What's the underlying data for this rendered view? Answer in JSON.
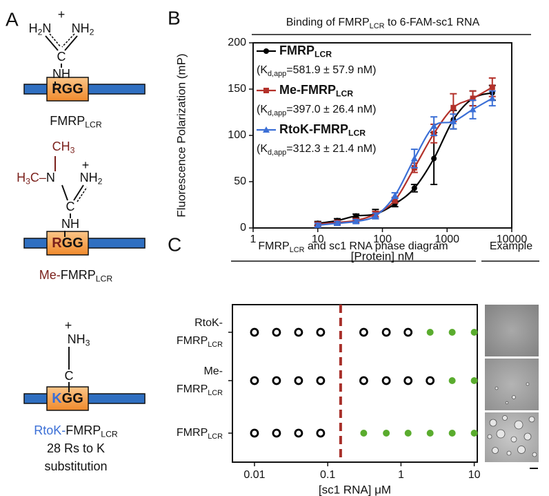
{
  "panel_a": {
    "label": "A",
    "structures": [
      {
        "atoms": [
          [
            {
              "t": "H"
            },
            {
              "s": "2"
            },
            {
              "t": "N"
            }
          ],
          [
            {
              "t": "NH"
            },
            {
              "s": "2"
            }
          ],
          [
            {
              "t": "+"
            }
          ],
          [
            {
              "t": "C"
            }
          ],
          [
            {
              "t": "NH"
            }
          ]
        ],
        "residue": [
          {
            "t": "R"
          },
          {
            "t": "GG"
          }
        ],
        "name": [
          [
            {
              "t": "FMRP"
            },
            {
              "s": "LCR"
            }
          ]
        ]
      },
      {
        "atoms": [
          [
            {
              "t": "CH",
              "color": "#7a1f1a"
            },
            {
              "s": "3",
              "color": "#7a1f1a"
            }
          ],
          [
            {
              "t": "H",
              "color": "#7a1f1a"
            },
            {
              "s": "3",
              "color": "#7a1f1a"
            },
            {
              "t": "C–",
              "color": "#7a1f1a"
            },
            {
              "t": "N"
            }
          ],
          [
            {
              "t": "NH"
            },
            {
              "s": "2"
            }
          ],
          [
            {
              "t": "+"
            }
          ],
          [
            {
              "t": "C"
            }
          ],
          [
            {
              "t": "NH"
            }
          ]
        ],
        "residue": [
          {
            "t": "R",
            "color": "#7a1f1a"
          },
          {
            "t": "GG"
          }
        ],
        "name": [
          [
            {
              "t": "Me-",
              "color": "#7a1f1a"
            },
            {
              "t": "FMRP"
            },
            {
              "s": "LCR"
            }
          ]
        ]
      },
      {
        "atoms": [
          [
            {
              "t": "+"
            }
          ],
          [
            {
              "t": "NH"
            },
            {
              "s": "3"
            }
          ],
          [
            {
              "t": "C"
            }
          ]
        ],
        "residue": [
          {
            "t": "K",
            "color": "#3b6fd6"
          },
          {
            "t": "GG"
          }
        ],
        "name": [
          [
            {
              "t": "RtoK-",
              "color": "#3b6fd6"
            },
            {
              "t": "FMRP"
            },
            {
              "s": "LCR"
            }
          ],
          [
            {
              "t": "28 Rs to K"
            }
          ],
          [
            {
              "t": "substitution"
            }
          ]
        ]
      }
    ]
  },
  "chart_data": [
    {
      "panel": "B",
      "type": "line",
      "title": [
        {
          "t": "Binding of FMRP"
        },
        {
          "s": "LCR"
        },
        {
          "t": " to 6-FAM-sc1 RNA"
        }
      ],
      "xlabel": "[Protein] nM",
      "ylabel": "Fluorescence Polarization (mP)",
      "xscale": "log",
      "xlim": [
        1,
        10000
      ],
      "xticks": [
        1,
        10,
        100,
        1000,
        10000
      ],
      "ylim": [
        0,
        200
      ],
      "yticks": [
        0,
        50,
        100,
        150,
        200
      ],
      "legend": "upper left",
      "x": [
        10,
        20,
        39,
        78,
        156,
        312,
        625,
        1250,
        2500,
        5000
      ],
      "series": [
        {
          "name": [
            {
              "t": "FMRP"
            },
            {
              "s": "LCR"
            }
          ],
          "annotation": [
            {
              "t": "(K"
            },
            {
              "s": "d,app"
            },
            {
              "t": "=581.9 ± 57.9 nM)"
            }
          ],
          "color": "#000000",
          "marker": "circle",
          "values": [
            5,
            8,
            13,
            15,
            26,
            43,
            75,
            117,
            140,
            146
          ],
          "errors": [
            2,
            2,
            2,
            5,
            3,
            4,
            28,
            10,
            8,
            8
          ]
        },
        {
          "name": [
            {
              "t": "Me-FMRP"
            },
            {
              "s": "LCR"
            }
          ],
          "annotation": [
            {
              "t": "(K"
            },
            {
              "s": "d,app"
            },
            {
              "t": "=397.0 ± 26.4 nM)"
            }
          ],
          "color": "#b3312a",
          "marker": "square",
          "values": [
            4,
            6,
            8,
            15,
            30,
            65,
            102,
            130,
            140,
            152
          ],
          "errors": [
            2,
            2,
            2,
            3,
            3,
            5,
            10,
            15,
            8,
            10
          ]
        },
        {
          "name": [
            {
              "t": "RtoK-FMRP"
            },
            {
              "s": "LCR"
            }
          ],
          "annotation": [
            {
              "t": "(K"
            },
            {
              "s": "d,app"
            },
            {
              "t": "=312.3 ± 21.4 nM)"
            }
          ],
          "color": "#3b6fd6",
          "marker": "triangle",
          "values": [
            3,
            5,
            7,
            13,
            35,
            75,
            110,
            115,
            128,
            140
          ],
          "errors": [
            2,
            2,
            2,
            3,
            3,
            10,
            10,
            8,
            10,
            8
          ]
        }
      ]
    },
    {
      "panel": "C",
      "type": "phase-diagram",
      "title": [
        {
          "t": "FMRP"
        },
        {
          "s": "LCR"
        },
        {
          "t": " and sc1 RNA phase diagram"
        }
      ],
      "side_title": "Example",
      "xlabel": "[sc1 RNA] μM",
      "xscale": "log",
      "xlim": [
        0.005,
        11
      ],
      "xticks": [
        0.01,
        0.1,
        1,
        10
      ],
      "x": [
        0.01,
        0.02,
        0.04,
        0.08,
        0.31,
        0.63,
        1.25,
        2.5,
        5,
        10
      ],
      "boundary": 0.15,
      "boundary_color": "#a8302a",
      "colors": {
        "open": "#000000",
        "filled": "#5aac2e"
      },
      "series": [
        {
          "name": [
            [
              {
                "t": "RtoK-"
              }
            ],
            [
              {
                "t": "FMRP"
              },
              {
                "s": "LCR"
              }
            ]
          ],
          "phase": [
            0,
            0,
            0,
            0,
            0,
            0,
            0,
            1,
            1,
            1
          ]
        },
        {
          "name": [
            [
              {
                "t": "Me-"
              }
            ],
            [
              {
                "t": "FMRP"
              },
              {
                "s": "LCR"
              }
            ]
          ],
          "phase": [
            0,
            0,
            0,
            0,
            0,
            0,
            0,
            0,
            1,
            1
          ]
        },
        {
          "name": [
            [
              {
                "t": "FMRP"
              },
              {
                "s": "LCR"
              }
            ]
          ],
          "phase": [
            0,
            0,
            0,
            0,
            1,
            1,
            1,
            1,
            1,
            1
          ]
        }
      ]
    }
  ]
}
